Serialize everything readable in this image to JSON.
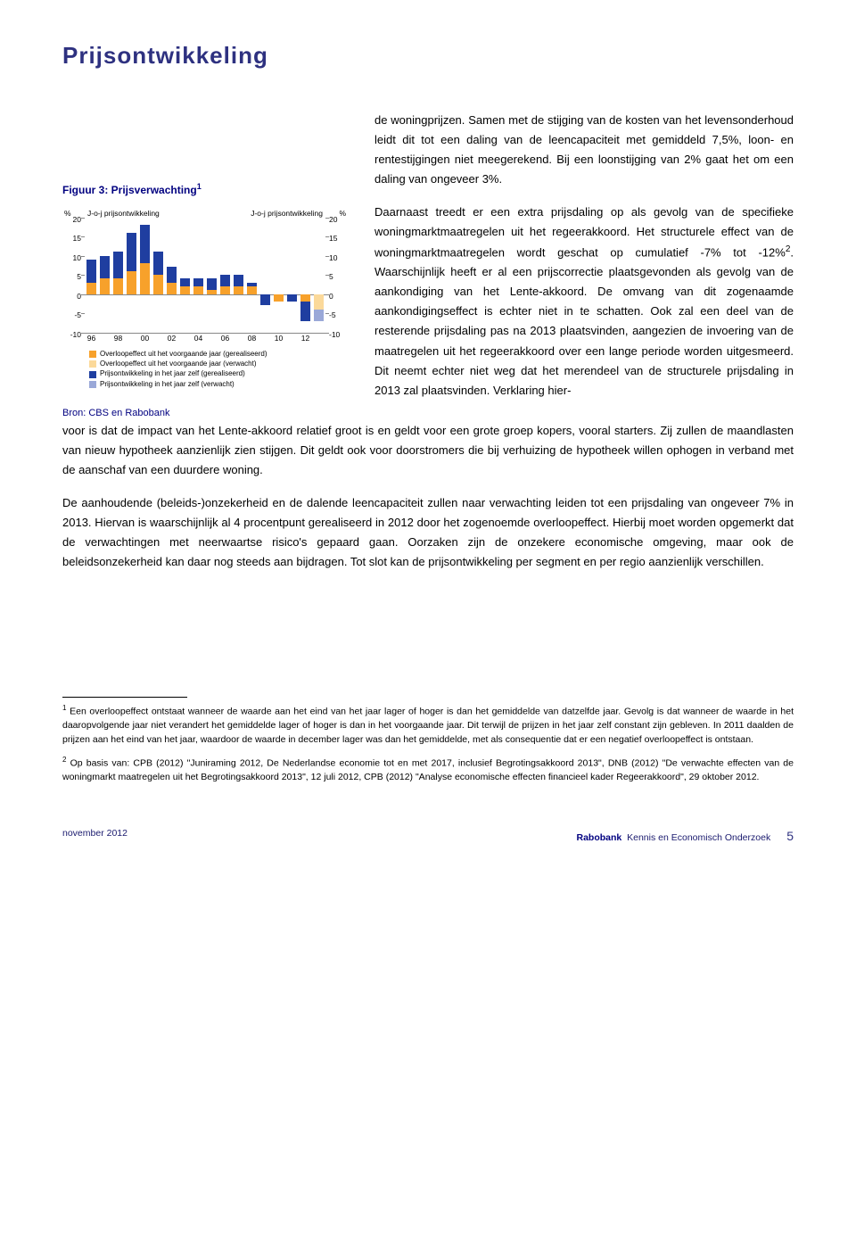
{
  "page_title": "Prijsontwikkeling",
  "intro_paragraph": "de woningprijzen. Samen met de stijging van de kosten van het levensonderhoud leidt dit tot een daling van de leencapaciteit met gemiddeld 7,5%, loon- en rentestijgingen niet meegerekend. Bij een loonstijging van 2% gaat het om een daling van ongeveer 3%.",
  "figure_label": "Figuur 3: Prijsverwachting",
  "figure_label_sup": "1",
  "chart": {
    "y_unit_left": "%",
    "y_unit_right": "%",
    "yoj_label_left": "J-o-j prijsontwikkeling",
    "yoj_label_right": "J-o-j prijsontwikkeling",
    "ymin": -10,
    "ymax": 20,
    "ytick_step": 5,
    "yticks": [
      20,
      15,
      10,
      5,
      0,
      -5,
      -10
    ],
    "xticks": [
      "96",
      "98",
      "00",
      "02",
      "04",
      "06",
      "08",
      "10",
      "12"
    ],
    "years": [
      "96",
      "97",
      "98",
      "99",
      "00",
      "01",
      "02",
      "03",
      "04",
      "05",
      "06",
      "07",
      "08",
      "09",
      "10",
      "11",
      "12",
      "13"
    ],
    "colors": {
      "overloop_real": "#f7a12b",
      "overloop_verwacht": "#fbd99a",
      "prijs_real": "#1f3ea0",
      "prijs_verwacht": "#9aa8d8",
      "axis": "#888888",
      "text": "#000000"
    },
    "series": {
      "overloop_real": [
        3,
        4,
        4,
        6,
        8,
        5,
        3,
        2,
        2,
        1,
        2,
        2,
        2,
        0,
        -2,
        0,
        -2,
        0
      ],
      "overloop_verwacht": [
        0,
        0,
        0,
        0,
        0,
        0,
        0,
        0,
        0,
        0,
        0,
        0,
        0,
        0,
        0,
        0,
        0,
        -4
      ],
      "prijs_real": [
        6,
        6,
        7,
        10,
        10,
        6,
        4,
        2,
        2,
        3,
        3,
        3,
        1,
        -3,
        0,
        -2,
        -5,
        0
      ],
      "prijs_verwacht": [
        0,
        0,
        0,
        0,
        0,
        0,
        0,
        0,
        0,
        0,
        0,
        0,
        0,
        0,
        0,
        0,
        0,
        -3
      ]
    },
    "legend": [
      {
        "color": "#f7a12b",
        "label": "Overloopeffect uit het voorgaande jaar (gerealiseerd)"
      },
      {
        "color": "#fbd99a",
        "label": "Overloopeffect uit het voorgaande jaar (verwacht)"
      },
      {
        "color": "#1f3ea0",
        "label": "Prijsontwikkeling in het jaar zelf (gerealiseerd)"
      },
      {
        "color": "#9aa8d8",
        "label": "Prijsontwikkeling in het jaar zelf (verwacht)"
      }
    ]
  },
  "source_label": "Bron: CBS en Rabobank",
  "right_paragraph": "Daarnaast treedt er een extra prijsdaling op als gevolg van de specifieke woningmarktmaatregelen uit het regeerakkoord. Het structurele effect van de woningmarktmaatregelen wordt geschat op cumulatief -7% tot -12%",
  "right_paragraph_sup": "2",
  "right_paragraph_cont": ". Waarschijnlijk heeft er al een prijscorrectie plaatsgevonden als gevolg van de aankondiging van het Lente-akkoord. De omvang van dit zogenaamde aankondigingseffect is echter niet in te schatten. Ook zal een deel van de resterende prijsdaling pas na 2013 plaatsvinden, aangezien de invoering van de maatregelen uit het regeerakkoord over een lange periode worden uitgesmeerd. Dit neemt echter niet weg dat het merendeel van de structurele prijsdaling in 2013 zal plaatsvinden. Verklaring hier-",
  "wide_paragraph_1": "voor is dat de impact van het Lente-akkoord relatief groot is en geldt voor een grote groep kopers, vooral starters. Zij zullen de maandlasten van nieuw hypotheek aanzienlijk zien stijgen. Dit geldt ook voor doorstromers die bij verhuizing de hypotheek willen ophogen in verband met de aanschaf van een duurdere woning.",
  "wide_paragraph_2": "De aanhoudende (beleids-)onzekerheid en de dalende leencapaciteit zullen naar verwachting leiden tot een prijsdaling van ongeveer 7% in 2013. Hiervan is waarschijnlijk al 4 procentpunt gerealiseerd in 2012 door het zogenoemde overloopeffect. Hierbij moet worden opgemerkt dat de verwachtingen met neerwaartse risico's gepaard gaan. Oorzaken zijn de onzekere economische omgeving, maar ook de beleidsonzekerheid kan daar nog steeds aan bijdragen. Tot slot kan de prijsontwikkeling per segment en per regio aanzienlijk verschillen.",
  "footnote1_sup": "1",
  "footnote1": " Een overloopeffect ontstaat wanneer de waarde aan het eind van het jaar lager of hoger is dan het gemiddelde van datzelfde jaar. Gevolg is dat wanneer de waarde in het daaropvolgende jaar niet verandert het gemiddelde lager of hoger is dan in het voorgaande jaar. Dit terwijl de prijzen in het jaar zelf constant zijn gebleven. In 2011 daalden de prijzen aan het eind van het jaar, waardoor de waarde in december lager was dan het gemiddelde, met als consequentie dat er een negatief overloopeffect is ontstaan.",
  "footnote2_sup": "2",
  "footnote2": " Op basis van: CPB (2012) \"Juniraming 2012, De Nederlandse economie tot en met 2017, inclusief Begrotingsakkoord 2013\", DNB (2012) \"De verwachte effecten van de woningmarkt maatregelen uit het Begrotingsakkoord 2013\", 12 juli 2012, CPB (2012) \"Analyse economische effecten financieel kader Regeerakkoord\", 29 oktober 2012.",
  "footer": {
    "date": "november 2012",
    "brand": "Rabobank",
    "dept": "Kennis en Economisch Onderzoek",
    "page": "5"
  }
}
